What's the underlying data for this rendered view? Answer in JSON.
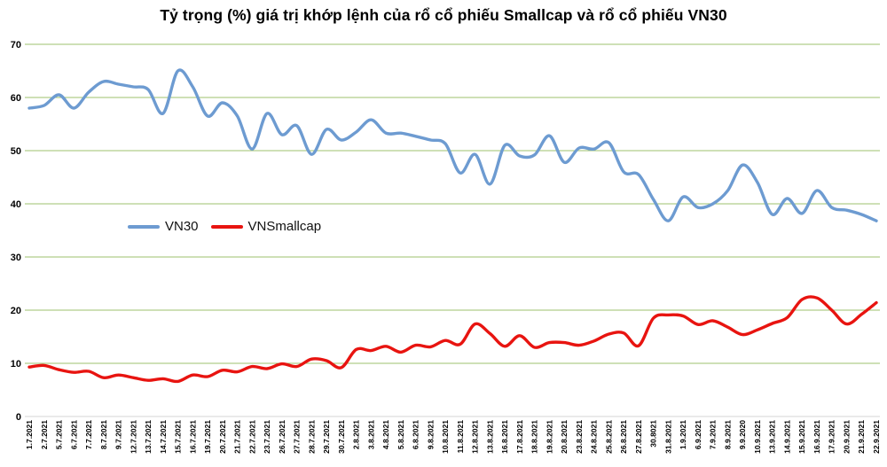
{
  "title": "Tỷ trọng (%) giá trị khớp lệnh của rổ cổ phiếu Smallcap và rổ cổ phiếu VN30",
  "legend": {
    "items": [
      {
        "label": "VN30",
        "color": "#6D9BD1"
      },
      {
        "label": "VNSmallcap",
        "color": "#E81410"
      }
    ],
    "position": "inside-left-middle"
  },
  "chart_data": {
    "type": "line",
    "smoothed": true,
    "title": "Tỷ trọng (%) giá trị khớp lệnh của rổ cổ phiếu Smallcap và rổ cổ phiếu VN30",
    "xlabel": "",
    "ylabel": "",
    "ylim": [
      0,
      70
    ],
    "y_ticks": [
      0,
      10,
      20,
      30,
      40,
      50,
      60,
      70
    ],
    "grid": "horizontal",
    "grid_color": "#9CC26D",
    "axis_color": "#D6D6D6",
    "x_label_rotation": -90,
    "categories": [
      "1.7.2021",
      "2.7.2021",
      "5.7.2021",
      "6.7.2021",
      "7.7.2021",
      "8.7.2021",
      "9.7.2021",
      "12.7.2021",
      "13.7.2021",
      "14.7.2021",
      "15.7.2021",
      "16.7.2021",
      "19.7.2021",
      "20.7.2021",
      "21.7.2021",
      "22.7.2021",
      "23.7.2021",
      "26.7.2021",
      "27.7.2021",
      "28.7.2021",
      "29.7.2021",
      "30.7.2021",
      "2.8.2021",
      "3.8.2021",
      "4.8.2021",
      "5.8.2021",
      "6.8.2021",
      "9.8.2021",
      "10.8.2021",
      "11.8.2021",
      "12.8.2021",
      "13.8.2021",
      "16.8.2021",
      "17.8.2021",
      "18.8.2021",
      "19.8.2021",
      "20.8.2021",
      "23.8.2021",
      "24.8.2021",
      "25.8.2021",
      "26.8.2021",
      "27.8.2021",
      "30.8021",
      "31.8.2021",
      "1.9.2021",
      "6.9.2021",
      "7.9.2021",
      "8.9.2021",
      "9.9.2020",
      "10.9.2021",
      "13.9.2021",
      "14.9.2021",
      "15.9.2021",
      "16.9.2021",
      "17.9.2021",
      "20.9.2021",
      "21.9.2021",
      "22.9.2021"
    ],
    "series": [
      {
        "name": "VN30",
        "color": "#6D9BD1",
        "values": [
          58,
          58.5,
          60.5,
          58,
          61,
          63,
          62.5,
          62,
          61.5,
          57,
          65,
          62,
          56.5,
          59,
          56.5,
          50.3,
          57,
          53,
          54.7,
          49.3,
          54,
          52,
          53.5,
          55.8,
          53.3,
          53.3,
          52.7,
          52,
          51.3,
          45.8,
          49.3,
          43.7,
          51,
          49,
          49.2,
          52.8,
          47.8,
          50.5,
          50.3,
          51.5,
          46,
          45.5,
          40.8,
          36.8,
          41.3,
          39.3,
          40,
          42.5,
          47.3,
          44,
          38,
          41,
          38.2,
          42.5,
          39.3,
          38.8,
          38,
          36.8
        ]
      },
      {
        "name": "VNSmallcap",
        "color": "#E81410",
        "values": [
          9.3,
          9.6,
          8.8,
          8.3,
          8.5,
          7.3,
          7.8,
          7.3,
          6.8,
          7.1,
          6.6,
          7.8,
          7.5,
          8.7,
          8.4,
          9.4,
          9,
          9.9,
          9.4,
          10.8,
          10.5,
          9.2,
          12.6,
          12.4,
          13.2,
          12.1,
          13.4,
          13.1,
          14.3,
          13.6,
          17.4,
          15.6,
          13.2,
          15.2,
          13,
          13.9,
          13.9,
          13.4,
          14.2,
          15.5,
          15.7,
          13.3,
          18.5,
          19.1,
          18.9,
          17.3,
          18,
          16.8,
          15.4,
          16.3,
          17.5,
          18.6,
          22,
          22.3,
          20,
          17.4,
          19.2,
          21.4
        ]
      }
    ]
  }
}
